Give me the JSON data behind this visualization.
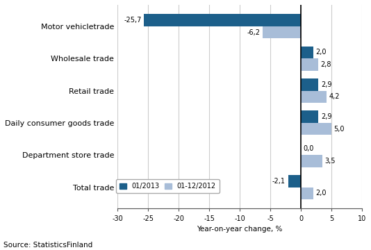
{
  "categories": [
    "Total trade",
    "Department store trade",
    "Daily consumer goods trade",
    "Retail trade",
    "Wholesale trade",
    "Motor vehicle trade"
  ],
  "series1_label": "01/2013",
  "series2_label": "01-12/2012",
  "series1_values": [
    -2.1,
    0.0,
    2.9,
    2.9,
    2.0,
    -25.7
  ],
  "series2_values": [
    2.0,
    3.5,
    5.0,
    4.2,
    2.8,
    -6.2
  ],
  "series1_color": "#1C5F8A",
  "series2_color": "#A8BDD8",
  "xlim": [
    -30,
    10
  ],
  "xticks": [
    -30,
    -25,
    -20,
    -15,
    -10,
    -5,
    0,
    5,
    10
  ],
  "xlabel": "Year-on-year change, %",
  "source": "Source: StatisticsFinland",
  "bar_height": 0.38,
  "value_fontsize": 7.0,
  "label_fontsize": 8.0,
  "grid_color": "#cccccc",
  "bg_color": "#ffffff",
  "ytick_labels": [
    "Total trade",
    "Department store trade",
    "Daily consumer goods trade",
    "Retail trade",
    "Wholesale trade",
    "Motor vehicletrade"
  ]
}
